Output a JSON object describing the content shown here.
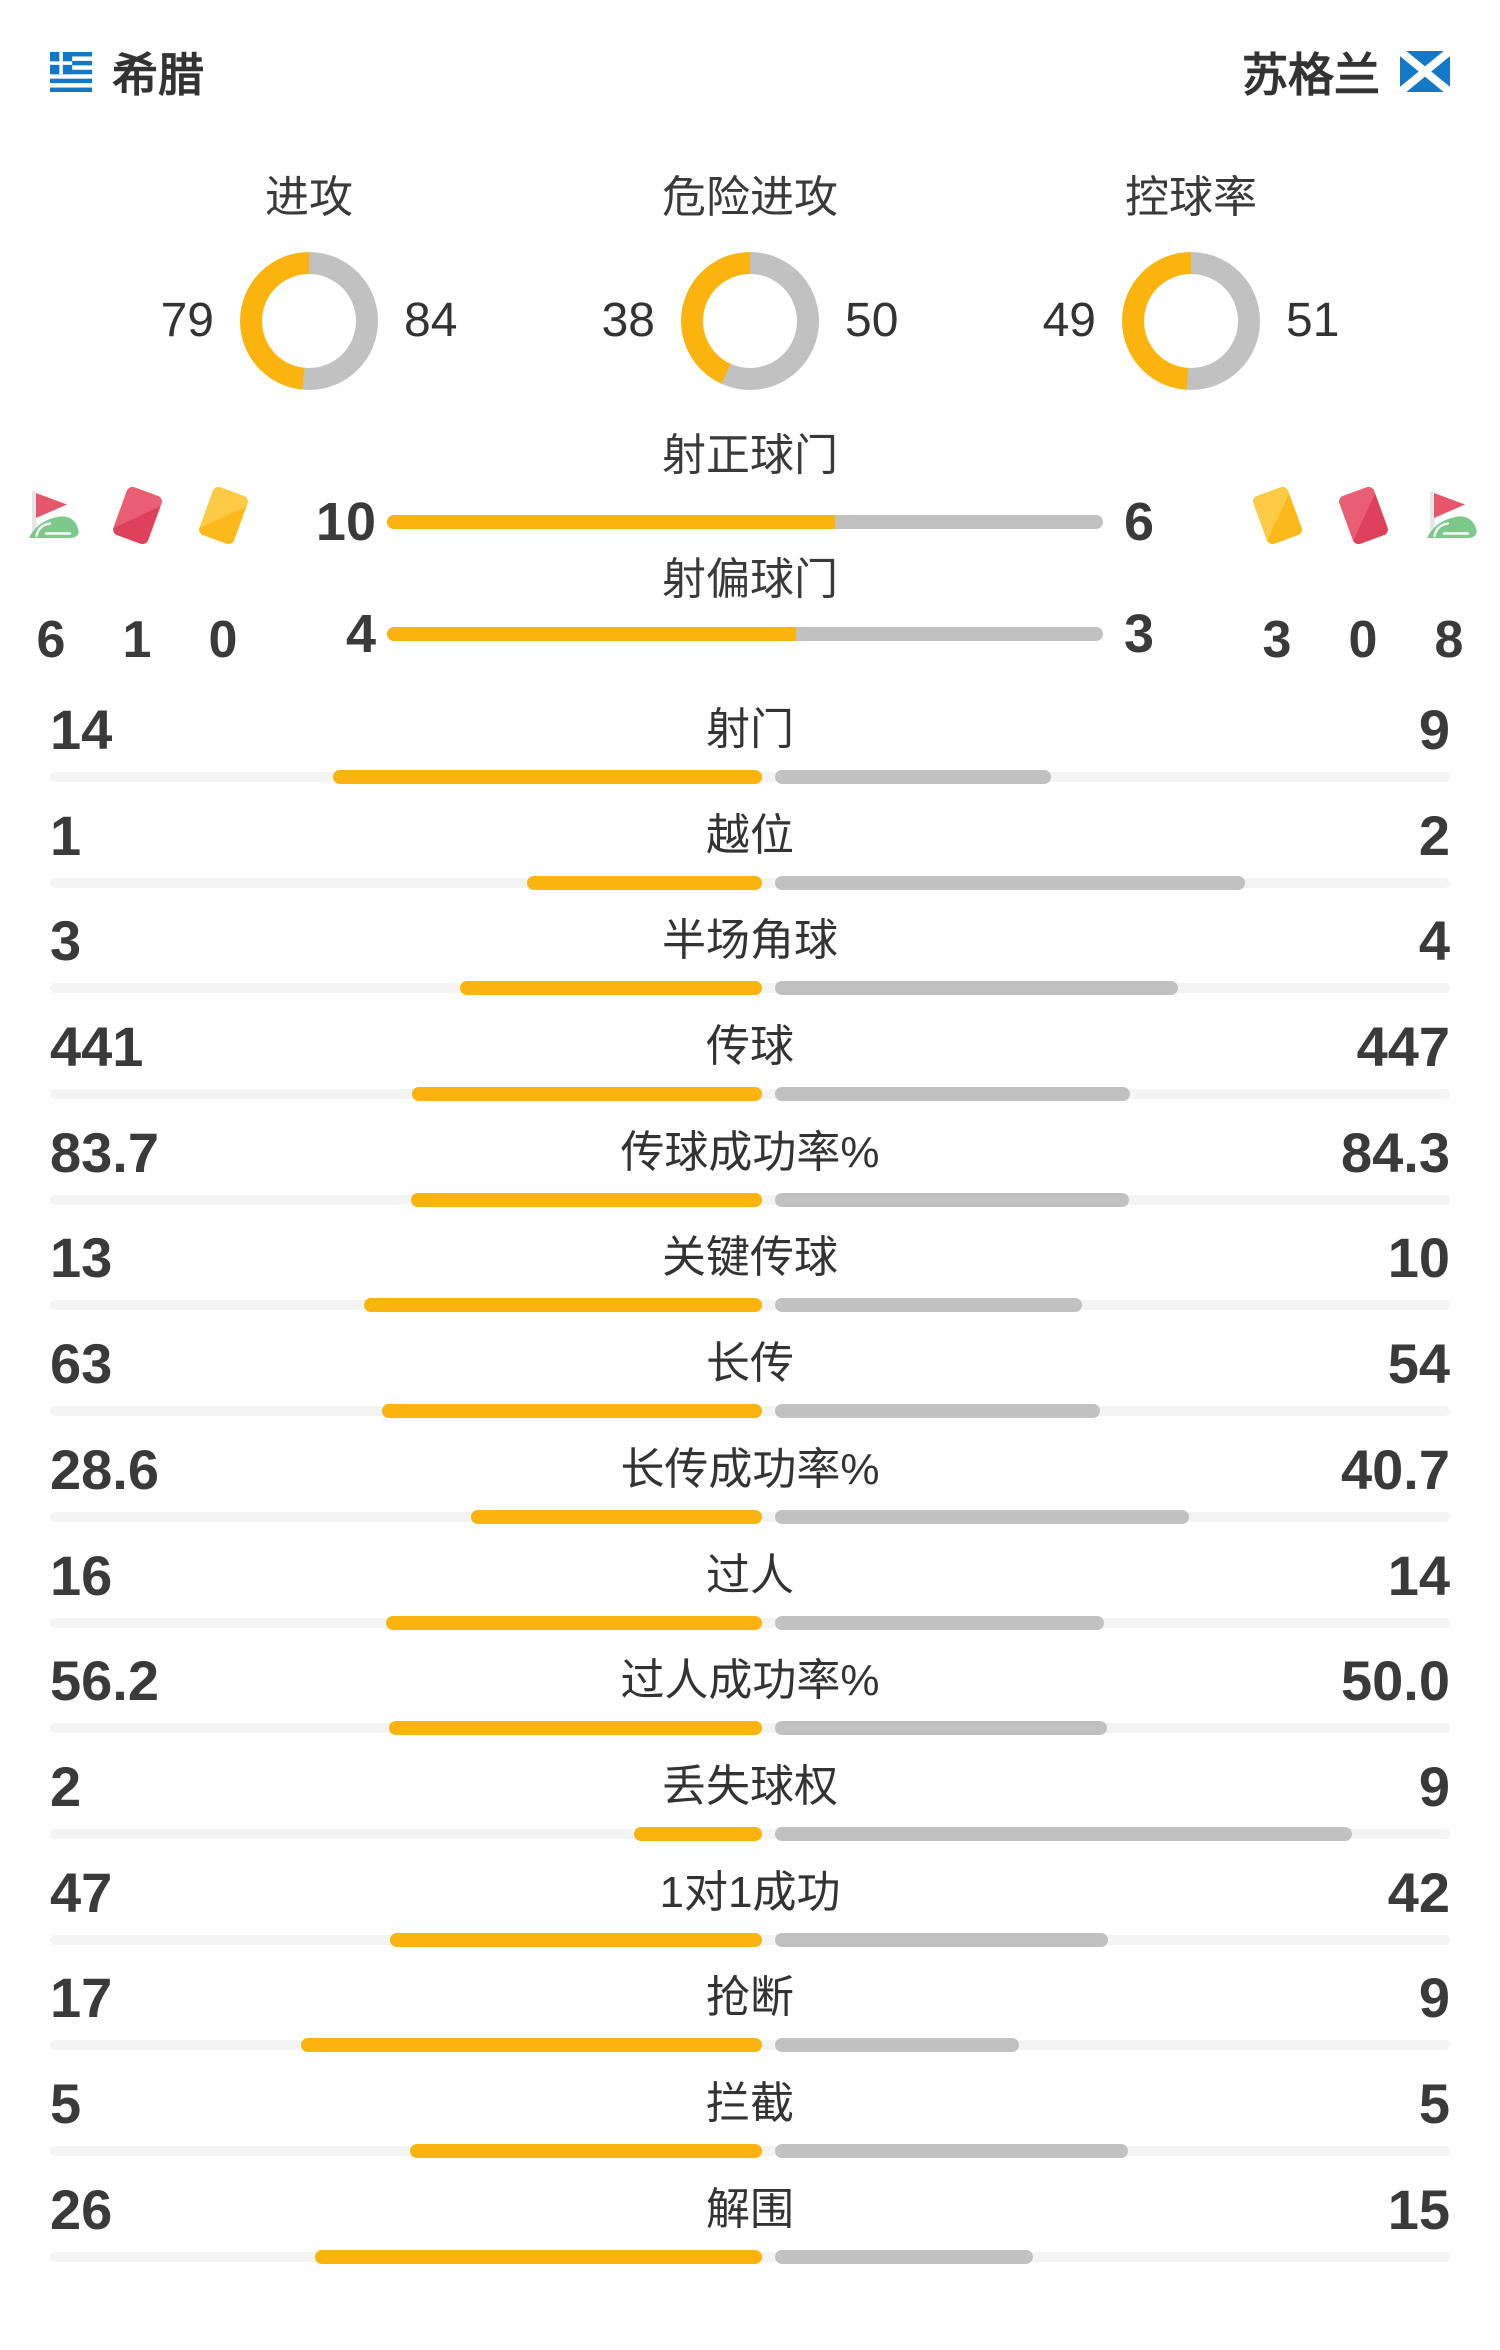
{
  "header": {
    "home": {
      "name": "希腊",
      "flag": "greece"
    },
    "away": {
      "name": "苏格兰",
      "flag": "scotland"
    }
  },
  "colors": {
    "home_accent": "#FBB40D",
    "away_accent": "#C1C1C1",
    "track": "#F4F4F4",
    "text_dark": "#333333",
    "number_dark": "#3A3A3A",
    "red_card": "#E8566B",
    "red_card_light": "#EA5E72",
    "red_card_dark": "#DE4159",
    "yellow_card_light": "#FCCA45",
    "yellow_card_dark": "#FBB91C",
    "corner_green": "#7CC98B",
    "flag_blue": "#1478C8",
    "pole_gray": "#E6E6E6"
  },
  "donuts": [
    {
      "label": "进攻",
      "home": "79",
      "away": "84"
    },
    {
      "label": "危险进攻",
      "home": "38",
      "away": "50"
    },
    {
      "label": "控球率",
      "home": "49",
      "away": "51"
    }
  ],
  "shot_bars": [
    {
      "label": "射正球门",
      "home": "10",
      "away": "6"
    },
    {
      "label": "射偏球门",
      "home": "4",
      "away": "3"
    }
  ],
  "side_icons": {
    "left": [
      {
        "icon": "corner-flag",
        "count": "6"
      },
      {
        "icon": "red-card",
        "count": "1"
      },
      {
        "icon": "yellow-card",
        "count": "0"
      }
    ],
    "right": [
      {
        "icon": "yellow-card",
        "count": "3"
      },
      {
        "icon": "red-card",
        "count": "0"
      },
      {
        "icon": "corner-flag",
        "count": "8"
      }
    ]
  },
  "stats": [
    {
      "label": "射门",
      "home": "14",
      "away": "9"
    },
    {
      "label": "越位",
      "home": "1",
      "away": "2"
    },
    {
      "label": "半场角球",
      "home": "3",
      "away": "4"
    },
    {
      "label": "传球",
      "home": "441",
      "away": "447"
    },
    {
      "label": "传球成功率%",
      "home": "83.7",
      "away": "84.3"
    },
    {
      "label": "关键传球",
      "home": "13",
      "away": "10"
    },
    {
      "label": "长传",
      "home": "63",
      "away": "54"
    },
    {
      "label": "长传成功率%",
      "home": "28.6",
      "away": "40.7"
    },
    {
      "label": "过人",
      "home": "16",
      "away": "14"
    },
    {
      "label": "过人成功率%",
      "home": "56.2",
      "away": "50.0"
    },
    {
      "label": "丢失球权",
      "home": "2",
      "away": "9"
    },
    {
      "label": "1对1成功",
      "home": "47",
      "away": "42"
    },
    {
      "label": "抢断",
      "home": "17",
      "away": "9"
    },
    {
      "label": "拦截",
      "home": "5",
      "away": "5"
    },
    {
      "label": "解围",
      "home": "26",
      "away": "15"
    }
  ],
  "chart_data": [
    {
      "type": "pie",
      "title": "进攻",
      "legend": [
        "希腊",
        "苏格兰"
      ],
      "values": [
        79,
        84
      ]
    },
    {
      "type": "pie",
      "title": "危险进攻",
      "legend": [
        "希腊",
        "苏格兰"
      ],
      "values": [
        38,
        50
      ]
    },
    {
      "type": "pie",
      "title": "控球率",
      "legend": [
        "希腊",
        "苏格兰"
      ],
      "values": [
        49,
        51
      ]
    },
    {
      "type": "bar",
      "title": "射正球门",
      "categories": [
        "希腊",
        "苏格兰"
      ],
      "values": [
        10,
        6
      ]
    },
    {
      "type": "bar",
      "title": "射偏球门",
      "categories": [
        "希腊",
        "苏格兰"
      ],
      "values": [
        4,
        3
      ]
    },
    {
      "type": "bar",
      "title": "角球/红牌/黄牌",
      "categories": [
        "角球",
        "红牌",
        "黄牌"
      ],
      "series": [
        {
          "name": "希腊",
          "values": [
            6,
            1,
            0
          ]
        },
        {
          "name": "苏格兰",
          "values": [
            8,
            0,
            3
          ]
        }
      ]
    },
    {
      "type": "bar",
      "title": "比赛统计对比",
      "categories": [
        "射门",
        "越位",
        "半场角球",
        "传球",
        "传球成功率%",
        "关键传球",
        "长传",
        "长传成功率%",
        "过人",
        "过人成功率%",
        "丢失球权",
        "1对1成功",
        "抢断",
        "拦截",
        "解围"
      ],
      "series": [
        {
          "name": "希腊",
          "values": [
            14,
            1,
            3,
            441,
            83.7,
            13,
            63,
            28.6,
            16,
            56.2,
            2,
            47,
            17,
            5,
            26
          ]
        },
        {
          "name": "苏格兰",
          "values": [
            9,
            2,
            4,
            447,
            84.3,
            10,
            54,
            40.7,
            14,
            50.0,
            9,
            42,
            9,
            5,
            15
          ]
        }
      ]
    }
  ]
}
